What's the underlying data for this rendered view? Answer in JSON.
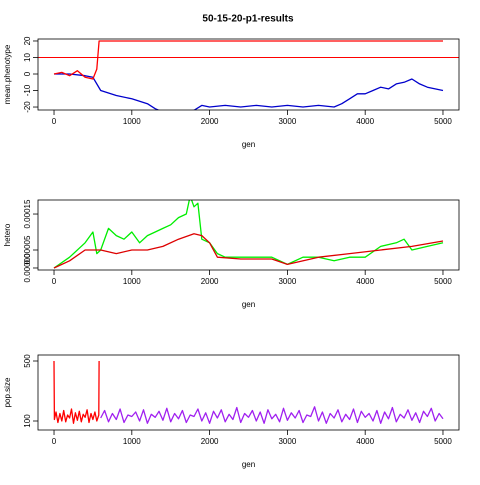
{
  "title": "50-15-20-p1-results",
  "chart_data": [
    {
      "type": "line",
      "ylabel": "mean.phenotype",
      "xlabel": "gen",
      "xlim": [
        -206,
        5206
      ],
      "ylim": [
        -21.8,
        21.2
      ],
      "xticks": [
        0,
        1000,
        2000,
        3000,
        4000,
        5000
      ],
      "yticks": [
        -20,
        -10,
        0,
        10,
        20
      ],
      "hline": 10,
      "hline_color": "#ff0000",
      "series": [
        {
          "color": "#0000cc",
          "x": [
            0,
            200,
            400,
            500,
            600,
            800,
            1000,
            1200,
            1300,
            1400,
            1600,
            1800,
            1900,
            2000,
            2200,
            2400,
            2600,
            2800,
            3000,
            3200,
            3400,
            3600,
            3700,
            3800,
            3900,
            4000,
            4100,
            4200,
            4300,
            4400,
            4500,
            4600,
            4700,
            4800,
            4900,
            5000
          ],
          "values": [
            0,
            0,
            -1,
            -2,
            -10,
            -13,
            -15,
            -18,
            -21,
            -23,
            -24,
            -22,
            -19,
            -20,
            -19,
            -20,
            -19,
            -20,
            -19,
            -20,
            -19,
            -20,
            -18,
            -15,
            -12,
            -12,
            -10,
            -8,
            -9,
            -6,
            -5,
            -3,
            -6,
            -8,
            -9,
            -10
          ]
        },
        {
          "color": "#ff0000",
          "x": [
            0,
            100,
            200,
            300,
            400,
            500,
            550,
            580,
            1000,
            5000
          ],
          "values": [
            0,
            1,
            -1,
            2,
            -2,
            -3,
            3,
            20,
            20,
            20
          ]
        }
      ]
    },
    {
      "type": "line",
      "ylabel": "hetero",
      "xlabel": "gen",
      "xlim": [
        -206,
        5206
      ],
      "ylim": [
        -5.6e-06,
        0.000189
      ],
      "xticks": [
        0,
        1000,
        2000,
        3000,
        4000,
        5000
      ],
      "yticks": [
        {
          "value": 0,
          "label": "0.00000"
        },
        {
          "value": 5e-05,
          "label": "0.00005"
        },
        {
          "value": 0.00015,
          "label": "0.00015"
        }
      ],
      "series": [
        {
          "color": "#00ee00",
          "x": [
            0,
            200,
            400,
            500,
            550,
            600,
            700,
            800,
            900,
            1000,
            1100,
            1200,
            1300,
            1400,
            1500,
            1600,
            1700,
            1750,
            1800,
            1850,
            1900,
            2000,
            2100,
            2200,
            2400,
            2600,
            2800,
            3000,
            3200,
            3400,
            3600,
            3800,
            4000,
            4200,
            4400,
            4500,
            4600,
            4800,
            5000
          ],
          "values": [
            0,
            3e-05,
            7e-05,
            0.0001,
            4e-05,
            5e-05,
            0.00011,
            9e-05,
            8e-05,
            0.0001,
            7e-05,
            9e-05,
            0.0001,
            0.00011,
            0.00012,
            0.00014,
            0.00015,
            0.0002,
            0.00017,
            0.00018,
            8e-05,
            7e-05,
            4e-05,
            3e-05,
            3e-05,
            3e-05,
            3e-05,
            1e-05,
            3e-05,
            3e-05,
            2e-05,
            3e-05,
            3e-05,
            6e-05,
            7e-05,
            8e-05,
            5e-05,
            6e-05,
            7e-05
          ]
        },
        {
          "color": "#dd0000",
          "x": [
            0,
            200,
            400,
            600,
            800,
            1000,
            1200,
            1400,
            1600,
            1800,
            1900,
            2000,
            2100,
            2400,
            2800,
            3000,
            3400,
            3800,
            4200,
            4600,
            5000
          ],
          "values": [
            0,
            2e-05,
            5e-05,
            5e-05,
            4e-05,
            5e-05,
            5e-05,
            6e-05,
            8e-05,
            9.5e-05,
            9e-05,
            7e-05,
            3e-05,
            2.5e-05,
            2.5e-05,
            1e-05,
            3e-05,
            4e-05,
            5e-05,
            6e-05,
            7.5e-05
          ]
        }
      ]
    },
    {
      "type": "line",
      "ylabel": "pop.size",
      "xlabel": "gen",
      "xlim": [
        -206,
        5206
      ],
      "ylim": [
        40,
        540
      ],
      "xticks": [
        0,
        1000,
        2000,
        3000,
        4000,
        5000
      ],
      "yticks": [
        100,
        500
      ],
      "series": [
        {
          "color": "#ff0000",
          "x": [
            0,
            5,
            25,
            50,
            75,
            100,
            125,
            150,
            175,
            200,
            225,
            250,
            275,
            300,
            325,
            350,
            375,
            400,
            425,
            450,
            475,
            500,
            525,
            550,
            575,
            580
          ],
          "values": [
            500,
            110,
            160,
            90,
            150,
            100,
            170,
            95,
            140,
            120,
            180,
            85,
            155,
            105,
            165,
            95,
            145,
            125,
            175,
            90,
            150,
            110,
            160,
            100,
            140,
            500
          ]
        },
        {
          "color": "#a020f0",
          "x": [
            600,
            650,
            700,
            750,
            800,
            850,
            900,
            950,
            1000,
            1050,
            1100,
            1150,
            1200,
            1250,
            1300,
            1350,
            1400,
            1450,
            1500,
            1550,
            1600,
            1650,
            1700,
            1750,
            1800,
            1850,
            1900,
            1950,
            2000,
            2050,
            2100,
            2150,
            2200,
            2250,
            2300,
            2350,
            2400,
            2450,
            2500,
            2550,
            2600,
            2650,
            2700,
            2750,
            2800,
            2850,
            2900,
            2950,
            3000,
            3050,
            3100,
            3150,
            3200,
            3250,
            3300,
            3350,
            3400,
            3450,
            3500,
            3550,
            3600,
            3650,
            3700,
            3750,
            3800,
            3850,
            3900,
            3950,
            4000,
            4050,
            4100,
            4150,
            4200,
            4250,
            4300,
            4350,
            4400,
            4450,
            4500,
            4550,
            4600,
            4650,
            4700,
            4750,
            4800,
            4850,
            4900,
            4950,
            5000
          ],
          "values": [
            120,
            170,
            95,
            150,
            110,
            180,
            90,
            140,
            130,
            160,
            100,
            175,
            85,
            145,
            125,
            165,
            105,
            185,
            95,
            150,
            115,
            170,
            90,
            140,
            130,
            180,
            100,
            155,
            85,
            165,
            120,
            175,
            95,
            145,
            110,
            190,
            90,
            150,
            125,
            170,
            100,
            160,
            85,
            175,
            115,
            145,
            95,
            185,
            105,
            155,
            120,
            170,
            90,
            140,
            130,
            195,
            100,
            160,
            85,
            150,
            120,
            175,
            95,
            145,
            110,
            180,
            90,
            165,
            125,
            150,
            100,
            170,
            85,
            160,
            115,
            190,
            95,
            145,
            120,
            175,
            105,
            155,
            90,
            165,
            130,
            185,
            100,
            150,
            115
          ]
        }
      ]
    }
  ]
}
